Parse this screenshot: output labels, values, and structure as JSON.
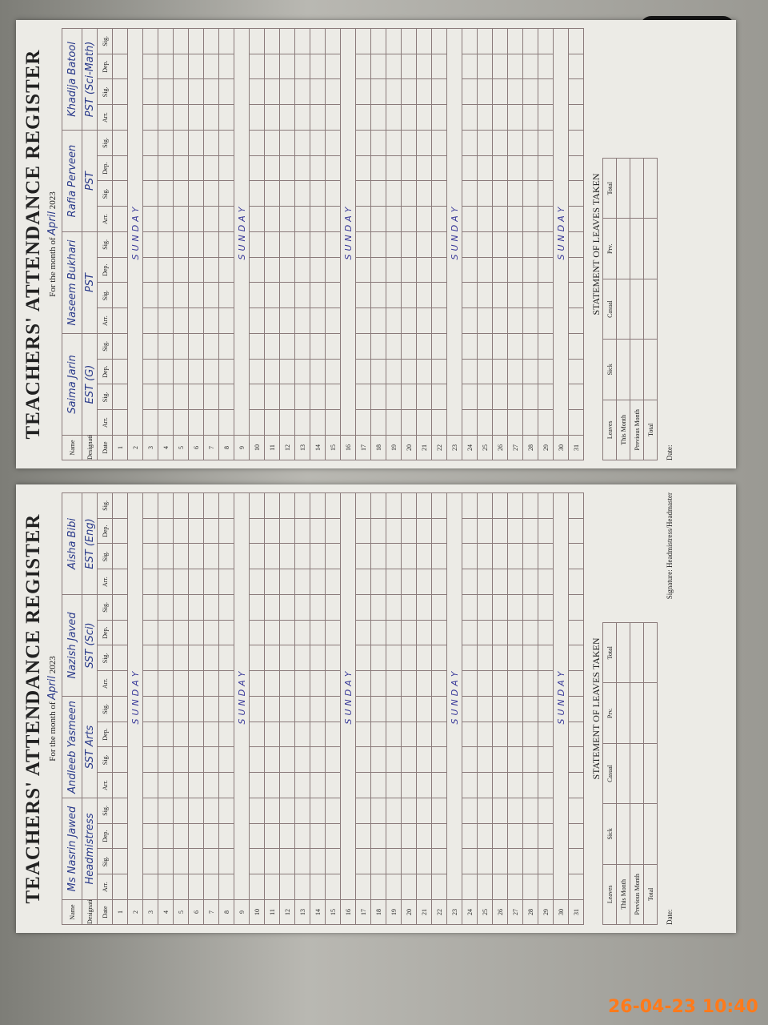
{
  "timestamp": "26-04-23  10:40",
  "pages": [
    {
      "title": "TEACHERS' ATTENDANCE REGISTER",
      "month_label": "For the month of",
      "month": "April",
      "year": "2023",
      "name_label": "Name",
      "designation_label": "Designation",
      "date_header": "Date",
      "col_headers": [
        "Arr.",
        "Sig.",
        "Dep.",
        "Sig."
      ],
      "teachers": [
        {
          "name": "Saima Jarin",
          "designation": "EST (G)"
        },
        {
          "name": "Naseem Bukhari",
          "designation": "PST"
        },
        {
          "name": "Rafia Perveen",
          "designation": "PST"
        },
        {
          "name": "Khadija Batool",
          "designation": "PST (Sci-Math)"
        }
      ],
      "dates": [
        1,
        2,
        3,
        4,
        5,
        6,
        7,
        8,
        9,
        10,
        11,
        12,
        13,
        14,
        15,
        16,
        17,
        18,
        19,
        20,
        21,
        22,
        23,
        24,
        25,
        26,
        27,
        28,
        29,
        30,
        31
      ],
      "day_notes": [
        null,
        "SUNDAY",
        null,
        null,
        null,
        null,
        null,
        null,
        "SUNDAY",
        null,
        null,
        null,
        null,
        null,
        null,
        "SUNDAY",
        null,
        null,
        null,
        null,
        null,
        null,
        "SUNDAY",
        null,
        null,
        null,
        null,
        null,
        null,
        "SUNDAY",
        null
      ],
      "leaves": {
        "title": "STATEMENT OF LEAVES TAKEN",
        "headers": [
          "Leaves",
          "Sick",
          "Casual",
          "Prv.",
          "Total"
        ],
        "rows": [
          "This Month",
          "Previous Month",
          "Total"
        ]
      },
      "date_label": "Date:"
    },
    {
      "title": "TEACHERS' ATTENDANCE REGISTER",
      "month_label": "For the month of",
      "month": "April",
      "year": "2023",
      "name_label": "Name",
      "designation_label": "Designation",
      "date_header": "Date",
      "col_headers": [
        "Arr.",
        "Sig.",
        "Dep.",
        "Sig."
      ],
      "teachers": [
        {
          "name": "Ms Nasrin Jawed",
          "designation": "Headmistress"
        },
        {
          "name": "Andleeb Yasmeen",
          "designation": "SST Arts"
        },
        {
          "name": "Nazish Javed",
          "designation": "SST (Sci)"
        },
        {
          "name": "Aisha Bibi",
          "designation": "EST (Eng)"
        }
      ],
      "dates": [
        1,
        2,
        3,
        4,
        5,
        6,
        7,
        8,
        9,
        10,
        11,
        12,
        13,
        14,
        15,
        16,
        17,
        18,
        19,
        20,
        21,
        22,
        23,
        24,
        25,
        26,
        27,
        28,
        29,
        30,
        31
      ],
      "day_notes": [
        null,
        "SUNDAY",
        null,
        null,
        null,
        null,
        null,
        null,
        "SUNDAY",
        null,
        null,
        null,
        null,
        null,
        null,
        "SUNDAY",
        null,
        null,
        null,
        null,
        null,
        null,
        "SUNDAY",
        null,
        null,
        null,
        null,
        null,
        null,
        "SUNDAY",
        null
      ],
      "leaves": {
        "title": "STATEMENT OF LEAVES TAKEN",
        "headers": [
          "Leaves",
          "Sick",
          "Casual",
          "Prv.",
          "Total"
        ],
        "rows": [
          "This Month",
          "Previous Month",
          "Total"
        ]
      },
      "signature": "Signature: Headmistress/Headmaster",
      "date_label": "Date:"
    }
  ]
}
